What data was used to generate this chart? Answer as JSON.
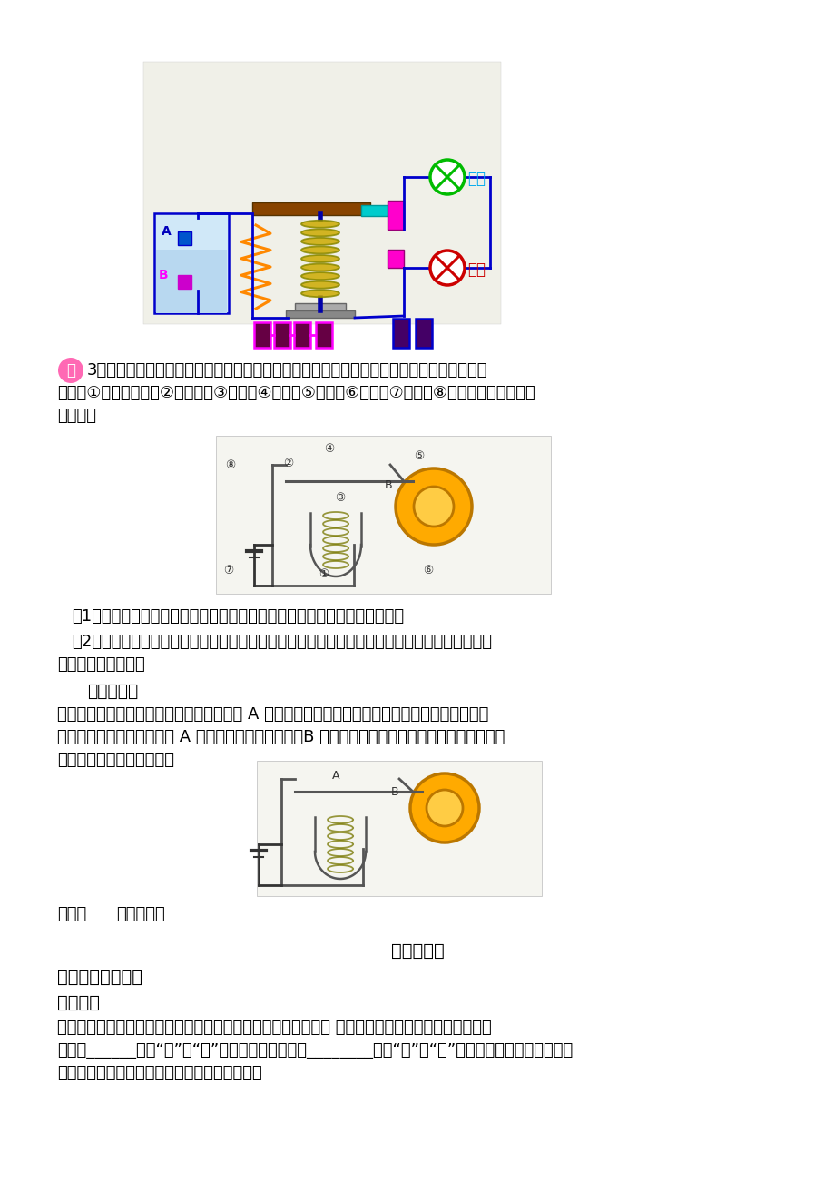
{
  "page_bg": "#ffffff",
  "fig_width": 9.2,
  "fig_height": 13.02,
  "dpi": 100,
  "example_label": "例",
  "example_label_bg": "#ff69b4",
  "example_label_color": "#ffffff",
  "example3_text": "3：某校学生开展物理课外科技活动，其内容是设计制作一个简易电铃，小华同学选择了如下",
  "example3_text2": "器材：①蹄形电磁鐵，②弹簧片，③衔鐵，④螺钉，⑤小锤，⑥电铃，⑦电源，⑧开关和若干导线，如",
  "example3_text3": "图所示。",
  "q1_text": "（1）请你用笔画线代替导线将电路连接好，使开关闭合时电铃能不断发声。",
  "q2_text1": "（2）小华同学发现自制的电铃铃声很小，经检查是电磁鐵的磁性不强所致，请你提出解决这一问",
  "q2_text2": "题的两条具体措施。",
  "analysis_title": "分析与解：",
  "analysis_p1": "这个电铃的原理是将衔鐵和有弹性的金属片 A 相连，接通电源后，电磁鐵产生磁性，将磁鐵吸下，",
  "analysis_p2": "小锤敲击铃，但同时衔鐵与 A 断开，电磁鐵失去磁性，B 在弹力的作用回到原位，再次形成通路，由",
  "analysis_p3": "此达到不断敲击铃的目的。",
  "answer_label": "答案：",
  "answer_text": "如图所示。",
  "section_title": "电磁继电器",
  "difficulty_title": "重难点易错点解析",
  "gold_title": "金题精讲",
  "topic1_text1": "题一：新建的居民住宅大多安装了自动空气开关。其原理如图， 当电路由于电流过大时，电磁鐵的磁",
  "topic1_text2": "性将变______（填“强”或“弱”），吸引衔鐵的力变________（填“大”或“小”），使衔鐵转动，闸刀在弹",
  "topic1_text3": "力作用下自动开启，切断电路，起到保险作用。"
}
